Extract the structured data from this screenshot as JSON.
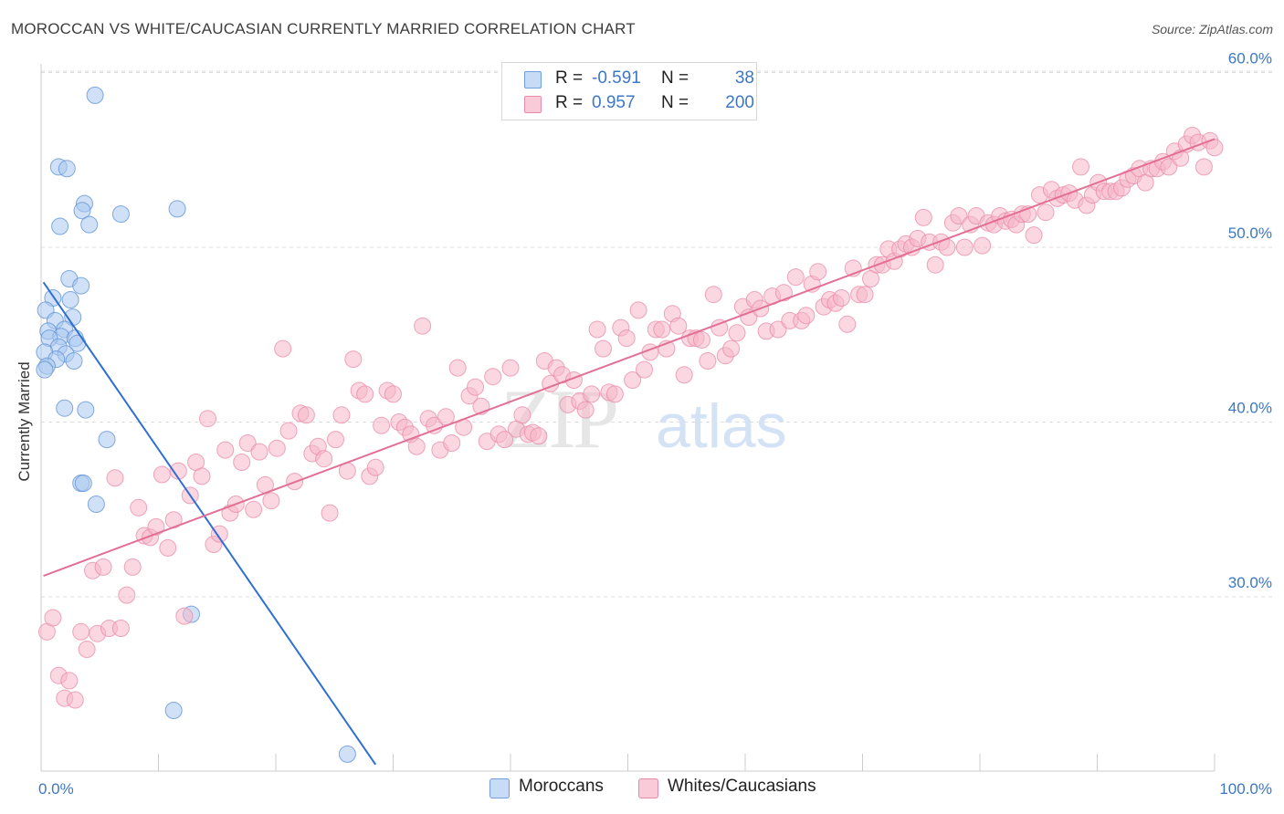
{
  "title": "MOROCCAN VS WHITE/CAUCASIAN CURRENTLY MARRIED CORRELATION CHART",
  "source": "Source: ZipAtlas.com",
  "watermark": {
    "zip": "ZIP",
    "atlas": "atlas"
  },
  "legend": {
    "rows": [
      {
        "r_label": "R =",
        "r_value": "-0.591",
        "n_label": "N =",
        "n_value": "38",
        "color": "#a9c8f0"
      },
      {
        "r_label": "R =",
        "r_value": "0.957",
        "n_label": "N =",
        "n_value": "200",
        "color": "#f5b6c9"
      }
    ]
  },
  "bottom_legend": [
    {
      "label": "Moroccans",
      "color": "#a9c8f0"
    },
    {
      "label": "Whites/Caucasians",
      "color": "#f5b6c9"
    }
  ],
  "chart_data": {
    "type": "scatter",
    "ylabel": "Currently Married",
    "xlabel": "",
    "xlim": [
      0,
      100
    ],
    "ylim": [
      20.4,
      62
    ],
    "x_tick_labels": [
      "0.0%",
      "100.0%"
    ],
    "y_ticks": [
      {
        "value": 30,
        "label": "30.0%"
      },
      {
        "value": 40,
        "label": "40.0%"
      },
      {
        "value": 50,
        "label": "50.0%"
      },
      {
        "value": 60,
        "label": "60.0%"
      }
    ],
    "grid": "horizontal dashed",
    "series": [
      {
        "name": "Moroccans",
        "color": "#5a8fd6",
        "fill": "#a9c8f0",
        "trend": {
          "x": [
            0.2,
            28.5
          ],
          "y": [
            48.0,
            20.4
          ],
          "color": "#2f6fd1"
        },
        "points": [
          [
            4.6,
            58.7
          ],
          [
            1.5,
            54.6
          ],
          [
            2.2,
            54.5
          ],
          [
            3.7,
            52.5
          ],
          [
            3.5,
            52.1
          ],
          [
            11.6,
            52.2
          ],
          [
            6.8,
            51.9
          ],
          [
            4.1,
            51.3
          ],
          [
            1.6,
            51.2
          ],
          [
            2.4,
            48.2
          ],
          [
            3.4,
            47.8
          ],
          [
            1.0,
            47.1
          ],
          [
            2.5,
            47.0
          ],
          [
            0.4,
            46.4
          ],
          [
            1.2,
            45.8
          ],
          [
            2.7,
            46.0
          ],
          [
            0.6,
            45.2
          ],
          [
            2.0,
            45.3
          ],
          [
            1.7,
            44.9
          ],
          [
            0.7,
            44.8
          ],
          [
            2.9,
            44.8
          ],
          [
            3.1,
            44.5
          ],
          [
            1.5,
            44.3
          ],
          [
            0.3,
            44.0
          ],
          [
            2.1,
            43.9
          ],
          [
            1.3,
            43.6
          ],
          [
            2.8,
            43.5
          ],
          [
            0.5,
            43.2
          ],
          [
            0.3,
            43.0
          ],
          [
            2.0,
            40.8
          ],
          [
            3.8,
            40.7
          ],
          [
            5.6,
            39.0
          ],
          [
            3.4,
            36.5
          ],
          [
            3.6,
            36.5
          ],
          [
            4.7,
            35.3
          ],
          [
            12.8,
            29.0
          ],
          [
            11.3,
            23.5
          ],
          [
            26.1,
            21.0
          ]
        ]
      },
      {
        "name": "Whites/Caucasians",
        "color": "#e98aa8",
        "fill": "#f5b6c9",
        "trend": {
          "x": [
            0.2,
            100
          ],
          "y": [
            31.2,
            56.2
          ],
          "color": "#e36f96"
        },
        "points": [
          [
            0.5,
            28.0
          ],
          [
            1.0,
            28.8
          ],
          [
            1.5,
            25.5
          ],
          [
            2.0,
            24.2
          ],
          [
            2.4,
            25.2
          ],
          [
            2.9,
            24.1
          ],
          [
            3.4,
            28.0
          ],
          [
            3.9,
            27.0
          ],
          [
            4.4,
            31.5
          ],
          [
            4.8,
            27.9
          ],
          [
            5.3,
            31.7
          ],
          [
            5.8,
            28.2
          ],
          [
            6.3,
            36.8
          ],
          [
            6.8,
            28.2
          ],
          [
            7.3,
            30.1
          ],
          [
            7.8,
            31.7
          ],
          [
            8.3,
            35.1
          ],
          [
            8.8,
            33.5
          ],
          [
            9.3,
            33.4
          ],
          [
            9.8,
            34.0
          ],
          [
            10.3,
            37.0
          ],
          [
            10.8,
            32.8
          ],
          [
            11.3,
            34.4
          ],
          [
            11.7,
            37.2
          ],
          [
            12.2,
            28.9
          ],
          [
            12.7,
            35.8
          ],
          [
            13.2,
            37.7
          ],
          [
            13.7,
            36.9
          ],
          [
            14.2,
            40.2
          ],
          [
            14.7,
            33.0
          ],
          [
            15.2,
            33.6
          ],
          [
            15.7,
            38.4
          ],
          [
            16.1,
            34.8
          ],
          [
            16.6,
            35.3
          ],
          [
            17.1,
            37.7
          ],
          [
            17.6,
            38.8
          ],
          [
            18.1,
            35.0
          ],
          [
            18.6,
            38.3
          ],
          [
            19.1,
            36.4
          ],
          [
            19.6,
            35.5
          ],
          [
            20.1,
            38.5
          ],
          [
            20.6,
            44.2
          ],
          [
            21.1,
            39.5
          ],
          [
            21.6,
            36.6
          ],
          [
            22.1,
            40.5
          ],
          [
            22.6,
            40.4
          ],
          [
            23.1,
            38.2
          ],
          [
            23.6,
            38.6
          ],
          [
            24.1,
            37.9
          ],
          [
            24.6,
            34.8
          ],
          [
            25.1,
            39.0
          ],
          [
            25.6,
            40.4
          ],
          [
            26.1,
            37.2
          ],
          [
            26.6,
            43.6
          ],
          [
            27.1,
            41.8
          ],
          [
            27.6,
            41.6
          ],
          [
            28.0,
            36.9
          ],
          [
            28.5,
            37.4
          ],
          [
            29.0,
            39.8
          ],
          [
            29.5,
            41.8
          ],
          [
            30.0,
            41.6
          ],
          [
            30.5,
            40.0
          ],
          [
            31.0,
            39.7
          ],
          [
            31.5,
            39.3
          ],
          [
            32.0,
            38.6
          ],
          [
            32.5,
            45.5
          ],
          [
            33.0,
            40.2
          ],
          [
            33.5,
            39.8
          ],
          [
            34.0,
            38.4
          ],
          [
            34.5,
            40.3
          ],
          [
            35.0,
            38.8
          ],
          [
            35.5,
            43.1
          ],
          [
            36.0,
            39.7
          ],
          [
            36.5,
            41.5
          ],
          [
            37.0,
            42.0
          ],
          [
            37.5,
            40.9
          ],
          [
            38.0,
            38.9
          ],
          [
            38.5,
            42.6
          ],
          [
            39.0,
            39.3
          ],
          [
            39.5,
            39.0
          ],
          [
            40.0,
            43.1
          ],
          [
            40.5,
            39.6
          ],
          [
            41.0,
            40.4
          ],
          [
            41.5,
            39.3
          ],
          [
            41.9,
            39.4
          ],
          [
            42.4,
            39.2
          ],
          [
            42.9,
            43.5
          ],
          [
            43.4,
            42.2
          ],
          [
            43.9,
            43.1
          ],
          [
            44.4,
            42.7
          ],
          [
            44.9,
            41.0
          ],
          [
            45.4,
            42.4
          ],
          [
            45.9,
            41.2
          ],
          [
            46.4,
            40.7
          ],
          [
            46.9,
            41.6
          ],
          [
            47.4,
            45.3
          ],
          [
            47.9,
            44.2
          ],
          [
            48.4,
            41.7
          ],
          [
            48.9,
            41.6
          ],
          [
            49.4,
            45.4
          ],
          [
            49.9,
            44.8
          ],
          [
            50.4,
            42.4
          ],
          [
            50.9,
            46.4
          ],
          [
            51.4,
            43.0
          ],
          [
            51.9,
            44.0
          ],
          [
            52.4,
            45.3
          ],
          [
            52.9,
            45.3
          ],
          [
            53.3,
            44.2
          ],
          [
            53.8,
            46.2
          ],
          [
            54.3,
            45.5
          ],
          [
            54.8,
            42.7
          ],
          [
            55.3,
            44.8
          ],
          [
            55.8,
            44.8
          ],
          [
            56.3,
            44.7
          ],
          [
            56.8,
            43.5
          ],
          [
            57.3,
            47.3
          ],
          [
            57.8,
            45.4
          ],
          [
            58.3,
            43.8
          ],
          [
            58.8,
            44.2
          ],
          [
            59.3,
            45.1
          ],
          [
            59.8,
            46.6
          ],
          [
            60.3,
            46.0
          ],
          [
            60.8,
            47.0
          ],
          [
            61.3,
            46.5
          ],
          [
            61.8,
            45.2
          ],
          [
            62.3,
            47.2
          ],
          [
            62.8,
            45.3
          ],
          [
            63.3,
            47.4
          ],
          [
            63.8,
            45.8
          ],
          [
            64.3,
            48.3
          ],
          [
            64.8,
            45.8
          ],
          [
            65.2,
            46.1
          ],
          [
            65.7,
            47.9
          ],
          [
            66.2,
            48.6
          ],
          [
            66.7,
            46.6
          ],
          [
            67.2,
            47.0
          ],
          [
            67.7,
            46.8
          ],
          [
            68.2,
            47.1
          ],
          [
            68.7,
            45.6
          ],
          [
            69.2,
            48.8
          ],
          [
            69.7,
            47.3
          ],
          [
            70.2,
            47.3
          ],
          [
            70.7,
            48.2
          ],
          [
            71.2,
            49.0
          ],
          [
            71.7,
            49.0
          ],
          [
            72.2,
            49.9
          ],
          [
            72.7,
            49.2
          ],
          [
            73.2,
            49.9
          ],
          [
            73.7,
            50.2
          ],
          [
            74.2,
            50.0
          ],
          [
            74.7,
            50.5
          ],
          [
            75.2,
            51.7
          ],
          [
            75.7,
            50.3
          ],
          [
            76.2,
            49.0
          ],
          [
            76.7,
            50.3
          ],
          [
            77.2,
            50.0
          ],
          [
            77.7,
            51.4
          ],
          [
            78.2,
            51.8
          ],
          [
            78.7,
            50.0
          ],
          [
            79.2,
            51.3
          ],
          [
            79.7,
            51.8
          ],
          [
            80.2,
            50.1
          ],
          [
            80.7,
            51.4
          ],
          [
            81.2,
            51.3
          ],
          [
            81.7,
            51.8
          ],
          [
            82.2,
            51.5
          ],
          [
            82.7,
            51.6
          ],
          [
            83.1,
            51.3
          ],
          [
            83.6,
            51.9
          ],
          [
            84.1,
            51.9
          ],
          [
            84.6,
            50.7
          ],
          [
            85.1,
            53.0
          ],
          [
            85.6,
            52.0
          ],
          [
            86.1,
            53.3
          ],
          [
            86.6,
            52.8
          ],
          [
            87.1,
            53.0
          ],
          [
            87.6,
            53.1
          ],
          [
            88.1,
            52.7
          ],
          [
            88.6,
            54.6
          ],
          [
            89.1,
            52.4
          ],
          [
            89.6,
            53.0
          ],
          [
            90.1,
            53.7
          ],
          [
            90.6,
            53.2
          ],
          [
            91.1,
            53.2
          ],
          [
            91.6,
            53.2
          ],
          [
            92.1,
            53.4
          ],
          [
            92.6,
            53.9
          ],
          [
            93.1,
            54.1
          ],
          [
            93.6,
            54.5
          ],
          [
            94.1,
            53.7
          ],
          [
            94.6,
            54.5
          ],
          [
            95.1,
            54.5
          ],
          [
            95.6,
            54.9
          ],
          [
            96.1,
            54.6
          ],
          [
            96.6,
            55.5
          ],
          [
            97.1,
            55.1
          ],
          [
            97.6,
            55.9
          ],
          [
            98.1,
            56.4
          ],
          [
            98.6,
            56.0
          ],
          [
            99.1,
            54.6
          ],
          [
            99.6,
            56.1
          ],
          [
            100.0,
            55.7
          ]
        ]
      }
    ]
  }
}
